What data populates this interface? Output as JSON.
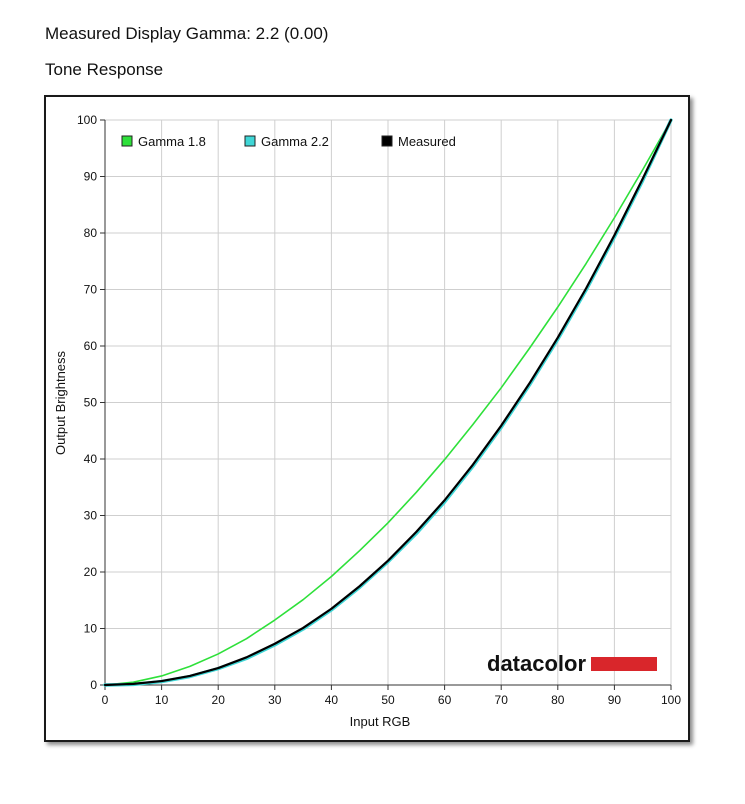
{
  "page": {
    "measured_heading": "Measured Display Gamma: 2.2 (0.00)",
    "tone_heading": "Tone Response"
  },
  "logo": {
    "text": "datacolor",
    "bar_color": "#d9262b"
  },
  "colors": {
    "gamma_18": "#2ee03a",
    "gamma_22": "#3fd6d6",
    "measured": "#000000",
    "grid": "#cfcfcf"
  },
  "chart_data": {
    "type": "line",
    "title": "Tone Response",
    "xlabel": "Input RGB",
    "ylabel": "Output Brightness",
    "xlim": [
      0,
      100
    ],
    "ylim": [
      0,
      100
    ],
    "grid": true,
    "legend_position": "top-left",
    "x_ticks": [
      "0",
      "10",
      "20",
      "30",
      "40",
      "50",
      "60",
      "70",
      "80",
      "90",
      "100"
    ],
    "y_ticks": [
      "0",
      "10",
      "20",
      "30",
      "40",
      "50",
      "60",
      "70",
      "80",
      "90",
      "100"
    ],
    "x": [
      0,
      5,
      10,
      15,
      20,
      25,
      30,
      35,
      40,
      45,
      50,
      55,
      60,
      65,
      70,
      75,
      80,
      85,
      90,
      95,
      100
    ],
    "series": [
      {
        "name": "Gamma 1.8",
        "color": "#2ee03a",
        "values": [
          0,
          0.5,
          1.6,
          3.3,
          5.5,
          8.2,
          11.5,
          15.1,
          19.2,
          23.8,
          28.7,
          34.1,
          39.9,
          46.1,
          52.6,
          59.6,
          66.9,
          74.6,
          82.7,
          91.2,
          100
        ]
      },
      {
        "name": "Gamma 2.2",
        "color": "#3fd6d6",
        "values": [
          0,
          0.1,
          0.6,
          1.5,
          2.9,
          4.7,
          7.1,
          9.9,
          13.3,
          17.3,
          21.8,
          26.8,
          32.4,
          38.7,
          45.6,
          53.1,
          61.2,
          69.9,
          79.3,
          89.3,
          100
        ]
      },
      {
        "name": "Measured",
        "color": "#000000",
        "values": [
          0,
          0.2,
          0.7,
          1.6,
          3.0,
          4.9,
          7.3,
          10.1,
          13.5,
          17.5,
          22.0,
          27.1,
          32.7,
          39.0,
          45.9,
          53.4,
          61.5,
          70.2,
          79.6,
          89.6,
          100
        ]
      }
    ]
  }
}
